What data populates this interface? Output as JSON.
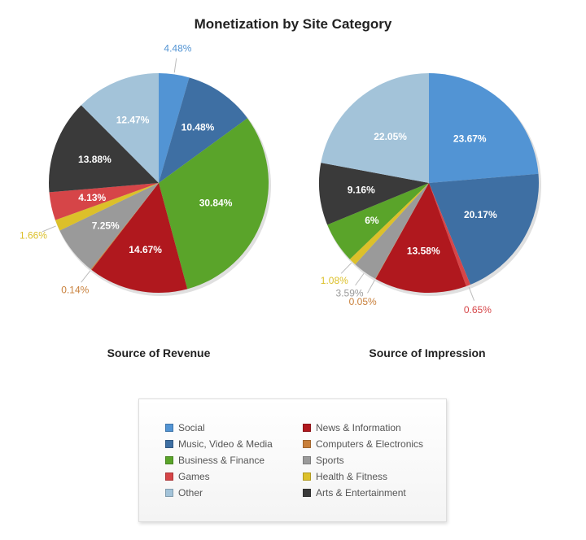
{
  "chart_data": {
    "type": "pie",
    "title": "Monetization by Site Category",
    "categories": {
      "Social": "#5294d4",
      "Music, Video & Media": "#3e6fa3",
      "Business & Finance": "#5aa42a",
      "Games": "#d64548",
      "Other": "#a3c3d9",
      "News & Information": "#b0181e",
      "Computers & Electronics": "#c87f3a",
      "Sports": "#9a9a9a",
      "Health & Fitness": "#dcc02a",
      "Arts & Entertainment": "#3a3a3a"
    },
    "legend_order": [
      "Social",
      "Music, Video & Media",
      "Business & Finance",
      "Games",
      "Other",
      "News & Information",
      "Computers & Electronics",
      "Sports",
      "Health & Fitness",
      "Arts & Entertainment"
    ],
    "pies": [
      {
        "title": "Source of Revenue",
        "slices": [
          {
            "category": "Social",
            "value": 4.48,
            "label": "4.48%",
            "outside": true
          },
          {
            "category": "Music, Video & Media",
            "value": 10.48,
            "label": "10.48%"
          },
          {
            "category": "Business & Finance",
            "value": 30.84,
            "label": "30.84%"
          },
          {
            "category": "News & Information",
            "value": 14.67,
            "label": "14.67%"
          },
          {
            "category": "Computers & Electronics",
            "value": 0.14,
            "label": "0.14%",
            "outside": true
          },
          {
            "category": "Sports",
            "value": 7.25,
            "label": "7.25%"
          },
          {
            "category": "Health & Fitness",
            "value": 1.66,
            "label": "1.66%",
            "outside": true
          },
          {
            "category": "Games",
            "value": 4.13,
            "label": "4.13%"
          },
          {
            "category": "Arts & Entertainment",
            "value": 13.88,
            "label": "13.88%"
          },
          {
            "category": "Other",
            "value": 12.47,
            "label": "12.47%"
          }
        ]
      },
      {
        "title": "Source of Impression",
        "slices": [
          {
            "category": "Social",
            "value": 23.67,
            "label": "23.67%"
          },
          {
            "category": "Music, Video & Media",
            "value": 20.17,
            "label": "20.17%"
          },
          {
            "category": "Games",
            "value": 0.65,
            "label": "0.65%",
            "outside": true
          },
          {
            "category": "News & Information",
            "value": 13.58,
            "label": "13.58%"
          },
          {
            "category": "Computers & Electronics",
            "value": 0.05,
            "label": "0.05%",
            "outside": true
          },
          {
            "category": "Sports",
            "value": 3.59,
            "label": "3.59%",
            "outside": true
          },
          {
            "category": "Health & Fitness",
            "value": 1.08,
            "label": "1.08%",
            "outside": true
          },
          {
            "category": "Business & Finance",
            "value": 6,
            "label": "6%"
          },
          {
            "category": "Arts & Entertainment",
            "value": 9.16,
            "label": "9.16%"
          },
          {
            "category": "Other",
            "value": 22.05,
            "label": "22.05%"
          }
        ]
      }
    ]
  }
}
